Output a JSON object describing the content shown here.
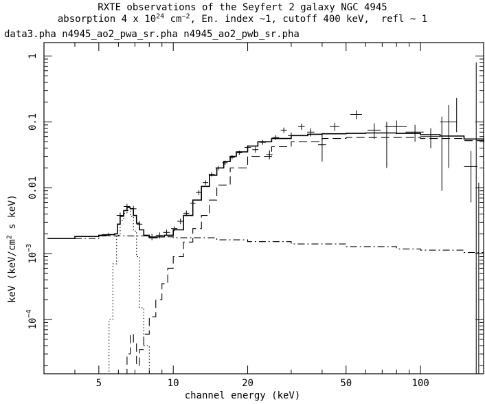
{
  "chart_data": {
    "type": "line",
    "title": "RXTE observations of the Seyfert 2 galaxy NGC 4945",
    "subtitle": {
      "p1": "absorption 4 x 10",
      "p1_sup": "24",
      "p2": " cm",
      "p2_sup": "−2",
      "p3": ", En. index ~1, cutoff 400 keV,  refl ~ 1"
    },
    "files_label": "data3.pha n4945_ao2_pwa_sr.pha n4945_ao2_pwb_sr.pha",
    "xlabel": "channel energy (keV)",
    "ylabel": {
      "p1": "keV (keV/cm",
      "sup": "2",
      "p2": " s keV)"
    },
    "x_scale": "log",
    "y_scale": "log",
    "xlim": [
      3.0,
      180
    ],
    "ylim": [
      1.5e-05,
      1.6
    ],
    "x_ticks": [
      {
        "v": 5,
        "label": "5"
      },
      {
        "v": 10,
        "label": "10"
      },
      {
        "v": 20,
        "label": "20"
      },
      {
        "v": 50,
        "label": "50"
      },
      {
        "v": 100,
        "label": "100"
      }
    ],
    "y_ticks": [
      {
        "v": 1,
        "label": "1"
      },
      {
        "v": 0.1,
        "label": "0.1"
      },
      {
        "v": 0.01,
        "label": "0.01"
      },
      {
        "v": 0.001,
        "base": "10",
        "exp": "−3"
      },
      {
        "v": 0.0001,
        "base": "10",
        "exp": "−4"
      }
    ],
    "series": [
      {
        "style": "solid",
        "x": [
          3.1,
          4,
          5,
          5.5,
          5.8,
          5.95,
          6.1,
          6.3,
          6.5,
          6.7,
          6.9,
          7.1,
          7.3,
          7.6,
          8,
          8.6,
          9.2,
          10,
          11,
          12,
          13,
          14,
          15,
          16,
          17,
          18,
          20,
          22,
          25,
          30,
          35,
          40,
          50,
          60,
          70,
          80,
          100,
          120,
          150,
          180
        ],
        "y": [
          0.0017,
          0.00182,
          0.0019,
          0.00195,
          0.002,
          0.0028,
          0.0037,
          0.0045,
          0.005,
          0.0048,
          0.0038,
          0.0029,
          0.0023,
          0.0019,
          0.00175,
          0.0018,
          0.0019,
          0.0023,
          0.0038,
          0.0065,
          0.0105,
          0.0155,
          0.02,
          0.025,
          0.03,
          0.035,
          0.043,
          0.05,
          0.056,
          0.062,
          0.065,
          0.066,
          0.067,
          0.068,
          0.068,
          0.067,
          0.064,
          0.061,
          0.055,
          0.05
        ]
      },
      {
        "style": "dash-dot",
        "x": [
          3.1,
          5,
          8,
          10,
          15,
          20,
          30,
          50,
          80,
          100,
          150,
          180
        ],
        "y": [
          0.0017,
          0.00186,
          0.0018,
          0.00174,
          0.00162,
          0.00152,
          0.0014,
          0.00128,
          0.00118,
          0.00113,
          0.00104,
          0.001
        ]
      },
      {
        "style": "dashed",
        "x": [
          6.3,
          6.5,
          6.7,
          6.9,
          7.1,
          7.3,
          7.6,
          8,
          8.5,
          9,
          9.5,
          10,
          11,
          12,
          13,
          14,
          15,
          17,
          20,
          25,
          30,
          40,
          50,
          70,
          100,
          150,
          180
        ],
        "y": [
          1.5e-05,
          3e-05,
          6e-05,
          4.5e-05,
          2e-05,
          3.5e-05,
          6e-05,
          0.00011,
          0.0002,
          0.00035,
          0.0006,
          0.0009,
          0.0015,
          0.0024,
          0.0038,
          0.0065,
          0.011,
          0.02,
          0.03,
          0.042,
          0.05,
          0.056,
          0.058,
          0.058,
          0.056,
          0.052,
          0.05
        ]
      },
      {
        "style": "dotted",
        "x": [
          5.3,
          5.5,
          5.7,
          5.9,
          6.1,
          6.3,
          6.5,
          6.7,
          6.9,
          7.1,
          7.3,
          7.6,
          8
        ],
        "y": [
          1.5e-05,
          0.0001,
          0.0007,
          0.0019,
          0.0032,
          0.0041,
          0.0045,
          0.0037,
          0.0022,
          0.0009,
          0.00015,
          4e-05,
          1.5e-05
        ]
      }
    ],
    "data_points": [
      {
        "x": 5.45,
        "y": 0.00195,
        "dx": 0.3,
        "dy": 0.0001
      },
      {
        "x": 6.1,
        "y": 0.0038,
        "dx": 0.2,
        "dy": 0.0004
      },
      {
        "x": 6.5,
        "y": 0.0052,
        "dx": 0.2,
        "dy": 0.0005
      },
      {
        "x": 6.9,
        "y": 0.0048,
        "dx": 0.2,
        "dy": 0.0005
      },
      {
        "x": 7.3,
        "y": 0.0028,
        "dx": 0.2,
        "dy": 0.0003
      },
      {
        "x": 8.2,
        "y": 0.0018,
        "dx": 0.3,
        "dy": 0.0002
      },
      {
        "x": 8.8,
        "y": 0.0019,
        "dx": 0.3,
        "dy": 0.0002
      },
      {
        "x": 9.4,
        "y": 0.0021,
        "dx": 0.3,
        "dy": 0.0002
      },
      {
        "x": 10.1,
        "y": 0.0024,
        "dx": 0.3,
        "dy": 0.0002
      },
      {
        "x": 10.7,
        "y": 0.0031,
        "dx": 0.3,
        "dy": 0.0003
      },
      {
        "x": 11.3,
        "y": 0.0041,
        "dx": 0.3,
        "dy": 0.0004
      },
      {
        "x": 12.0,
        "y": 0.0058,
        "dx": 0.3,
        "dy": 0.0005
      },
      {
        "x": 12.7,
        "y": 0.0085,
        "dx": 0.35,
        "dy": 0.0007
      },
      {
        "x": 13.5,
        "y": 0.012,
        "dx": 0.35,
        "dy": 0.001
      },
      {
        "x": 14.3,
        "y": 0.016,
        "dx": 0.4,
        "dy": 0.0012
      },
      {
        "x": 15.2,
        "y": 0.02,
        "dx": 0.4,
        "dy": 0.0015
      },
      {
        "x": 16.2,
        "y": 0.024,
        "dx": 0.4,
        "dy": 0.0018
      },
      {
        "x": 17.3,
        "y": 0.029,
        "dx": 0.45,
        "dy": 0.002
      },
      {
        "x": 18.5,
        "y": 0.034,
        "dx": 0.5,
        "dy": 0.0025
      },
      {
        "x": 20.0,
        "y": 0.041,
        "dx": 0.6,
        "dy": 0.003
      },
      {
        "x": 21.5,
        "y": 0.038,
        "dx": 0.6,
        "dy": 0.004
      },
      {
        "x": 23.0,
        "y": 0.049,
        "dx": 0.7,
        "dy": 0.004
      },
      {
        "x": 24.5,
        "y": 0.032,
        "dx": 0.7,
        "dy": 0.005
      },
      {
        "x": 26.0,
        "y": 0.058,
        "dx": 0.8,
        "dy": 0.005
      },
      {
        "x": 28.0,
        "y": 0.075,
        "dx": 0.8,
        "dy": 0.007
      },
      {
        "x": 30.0,
        "y": 0.062,
        "dx": 0.9,
        "dy": 0.007
      },
      {
        "x": 33.0,
        "y": 0.085,
        "dx": 1.0,
        "dy": 0.009
      },
      {
        "x": 36.0,
        "y": 0.07,
        "dx": 1.2,
        "dy": 0.01
      },
      {
        "x": 40.0,
        "y": 0.045,
        "dx": 1.5,
        "dy": 0.02
      },
      {
        "x": 45.0,
        "y": 0.085,
        "dx": 2,
        "dy": 0.012
      },
      {
        "x": 55.0,
        "y": 0.13,
        "dx": 3,
        "dy": 0.02
      },
      {
        "x": 65.0,
        "y": 0.075,
        "dx": 4,
        "dy": 0.02
      },
      {
        "x": 80.0,
        "y": 0.085,
        "dx": 8,
        "dy": 0.02
      },
      {
        "x": 95.0,
        "y": 0.07,
        "dx": 8,
        "dy": 0.02
      },
      {
        "x": 110.0,
        "y": 0.06,
        "dx": 10,
        "dy": 0.02
      },
      {
        "x": 130.0,
        "y": 0.1,
        "dx": 10,
        "dy": 0.08
      },
      {
        "x": 160.0,
        "y": 0.021,
        "dx": 10,
        "dy": 0.015
      }
    ],
    "errorbar_only": [
      {
        "x": 73.0,
        "ylo": 0.02,
        "yhi": 0.1
      },
      {
        "x": 122.0,
        "ylo": 0.009,
        "yhi": 0.12
      },
      {
        "x": 140.0,
        "ylo": 0.07,
        "yhi": 0.23
      },
      {
        "x": 168.0,
        "ylo": 1.5e-05,
        "yhi": 0.8
      },
      {
        "x": 172.0,
        "ylo": 1.5e-05,
        "yhi": 0.012
      }
    ]
  }
}
